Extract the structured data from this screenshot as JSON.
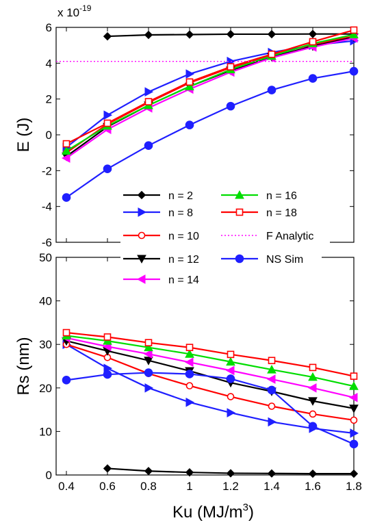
{
  "chart_data": [
    {
      "type": "line",
      "ylabel": "E (J)",
      "y_exponent_label": "x 10",
      "y_exponent_power": "-19",
      "x": [
        0.4,
        0.6,
        0.8,
        1.0,
        1.2,
        1.4,
        1.6,
        1.8
      ],
      "xlim": [
        0.35,
        1.8
      ],
      "ylim": [
        -6,
        6
      ],
      "yticks": [
        "-6",
        "-4",
        "-2",
        "0",
        "2",
        "4",
        "6"
      ],
      "series": [
        {
          "name": "n = 2",
          "color": "#000000",
          "marker": "diamond",
          "values": [
            null,
            5.5,
            5.58,
            5.6,
            5.62,
            5.62,
            5.63,
            5.63
          ]
        },
        {
          "name": "n = 8",
          "color": "#1f1fff",
          "marker": "triangle-right",
          "values": [
            -0.7,
            1.1,
            2.4,
            3.4,
            4.1,
            4.6,
            5.0,
            5.25
          ]
        },
        {
          "name": "n = 10",
          "color": "#ff0000",
          "marker": "circle-open",
          "values": [
            -1.0,
            0.6,
            1.8,
            2.9,
            3.75,
            4.45,
            5.05,
            5.5
          ]
        },
        {
          "name": "n = 12",
          "color": "#000000",
          "marker": "triangle-down",
          "values": [
            -1.2,
            0.45,
            1.65,
            2.7,
            3.6,
            4.35,
            4.95,
            5.45
          ]
        },
        {
          "name": "n = 14",
          "color": "#ff00ff",
          "marker": "triangle-left",
          "values": [
            -1.3,
            0.3,
            1.5,
            2.55,
            3.5,
            4.3,
            4.9,
            5.4
          ]
        },
        {
          "name": "n = 16",
          "color": "#00dd00",
          "marker": "triangle-up",
          "values": [
            -0.9,
            0.5,
            1.65,
            2.7,
            3.65,
            4.4,
            5.1,
            5.6
          ]
        },
        {
          "name": "n = 18",
          "color": "#ff0000",
          "marker": "square-open",
          "values": [
            -0.5,
            0.65,
            1.85,
            2.95,
            3.8,
            4.5,
            5.2,
            5.85
          ]
        },
        {
          "name": "F Analytic",
          "color": "#ff00ff",
          "marker": "none",
          "dashed": true,
          "values": [
            4.1,
            4.1,
            4.1,
            4.1,
            4.1,
            4.1,
            4.1,
            4.1
          ]
        },
        {
          "name": "NS Sim",
          "color": "#1f1fff",
          "marker": "circle-filled",
          "values": [
            -3.5,
            -1.9,
            -0.6,
            0.55,
            1.6,
            2.5,
            3.15,
            3.55
          ]
        }
      ],
      "legend_placement": "bottom-right"
    },
    {
      "type": "line",
      "xlabel": "Ku (MJ/m",
      "xlabel_sup": "3",
      "xlabel_tail": ")",
      "ylabel": "Rs (nm)",
      "x": [
        0.4,
        0.6,
        0.8,
        1.0,
        1.2,
        1.4,
        1.6,
        1.8
      ],
      "xlim": [
        0.35,
        1.8
      ],
      "ylim": [
        0,
        50
      ],
      "xticks": [
        "0.4",
        "0.6",
        "0.8",
        "1",
        "1.2",
        "1.4",
        "1.6",
        "1.8"
      ],
      "yticks": [
        "0",
        "10",
        "20",
        "30",
        "40",
        "50"
      ],
      "series": [
        {
          "name": "n = 2",
          "color": "#000000",
          "marker": "diamond",
          "values": [
            null,
            1.5,
            0.9,
            0.6,
            0.4,
            0.35,
            0.3,
            0.3
          ]
        },
        {
          "name": "n = 8",
          "color": "#1f1fff",
          "marker": "triangle-right",
          "values": [
            30,
            24.5,
            20,
            16.7,
            14.3,
            12.2,
            10.7,
            9.6
          ]
        },
        {
          "name": "n = 10",
          "color": "#ff0000",
          "marker": "circle-open",
          "values": [
            30,
            27,
            23.3,
            20.5,
            18,
            15.8,
            14,
            12.6
          ]
        },
        {
          "name": "n = 12",
          "color": "#000000",
          "marker": "triangle-down",
          "values": [
            30.8,
            28.5,
            26.3,
            23.9,
            21.2,
            19.2,
            17,
            15.3
          ]
        },
        {
          "name": "n = 14",
          "color": "#ff00ff",
          "marker": "triangle-left",
          "values": [
            31.5,
            29.5,
            27.8,
            25.9,
            24,
            22,
            20,
            17.8
          ]
        },
        {
          "name": "n = 16",
          "color": "#00dd00",
          "marker": "triangle-up",
          "values": [
            32,
            30.8,
            29.3,
            27.8,
            26,
            24.2,
            22.5,
            20.4
          ]
        },
        {
          "name": "n = 18",
          "color": "#ff0000",
          "marker": "square-open",
          "values": [
            32.7,
            31.7,
            30.4,
            29.3,
            27.7,
            26.3,
            24.7,
            22.7
          ]
        },
        {
          "name": "NS Sim",
          "color": "#1f1fff",
          "marker": "circle-filled",
          "values": [
            21.8,
            23.1,
            23.5,
            23.2,
            22.1,
            19.5,
            11.2,
            7.1
          ]
        }
      ]
    }
  ]
}
